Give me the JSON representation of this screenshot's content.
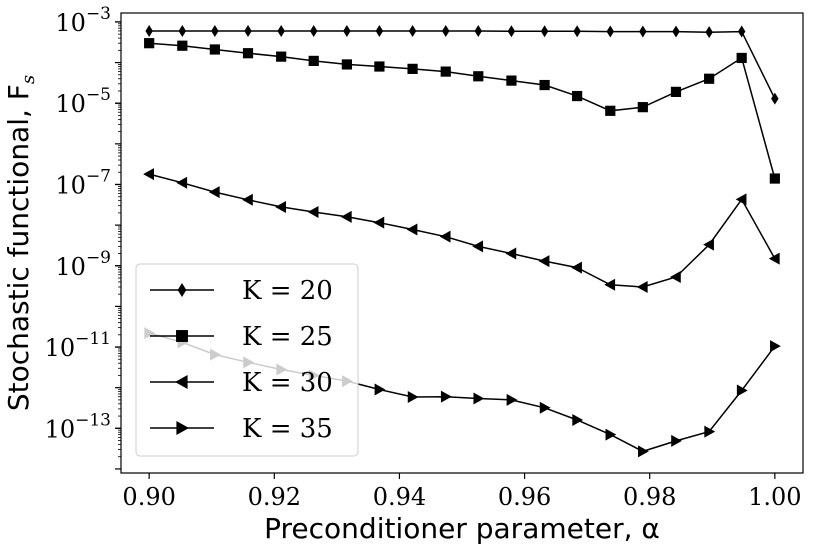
{
  "chart_data": {
    "type": "line",
    "title": "",
    "xlabel": "Preconditioner parameter, α",
    "ylabel": "Stochastic functional, F",
    "ylabel_sub": "s",
    "y_scale": "log",
    "xlim": [
      0.8955,
      1.0045
    ],
    "ylim_exp": [
      -14.1,
      -2.78
    ],
    "x_ticks": [
      0.9,
      0.92,
      0.94,
      0.96,
      0.98,
      1.0
    ],
    "x_tick_labels": [
      "0.90",
      "0.92",
      "0.94",
      "0.96",
      "0.98",
      "1.00"
    ],
    "y_ticks_exp": [
      -13,
      -11,
      -9,
      -7,
      -5,
      -3
    ],
    "y_tick_labels": [
      "10",
      "10",
      "10",
      "10",
      "10",
      "10"
    ],
    "y_tick_exponents": [
      "−13",
      "−11",
      "−9",
      "−7",
      "−5",
      "−3"
    ],
    "grid": false,
    "legend_position": "lower-left",
    "x": [
      0.9,
      0.9053,
      0.9105,
      0.9158,
      0.9211,
      0.9263,
      0.9316,
      0.9368,
      0.9421,
      0.9474,
      0.9526,
      0.9579,
      0.9632,
      0.9684,
      0.9737,
      0.9789,
      0.9842,
      0.9895,
      0.9947,
      1.0
    ],
    "series": [
      {
        "name": "K = 20",
        "marker": "diamond",
        "color": "#000000",
        "values": [
          0.0006,
          0.0006,
          0.0006,
          0.0006,
          0.0006,
          0.0006,
          0.0006,
          0.0006,
          0.0006,
          0.0006,
          0.0006,
          0.00059,
          0.00059,
          0.00059,
          0.00058,
          0.00058,
          0.00058,
          0.00056,
          0.00058,
          1.3e-05
        ]
      },
      {
        "name": "K = 25",
        "marker": "square",
        "color": "#000000",
        "values": [
          0.0003,
          0.00026,
          0.00021,
          0.00017,
          0.00014,
          0.00011,
          9e-05,
          8e-05,
          7e-05,
          6e-05,
          4.6e-05,
          3.6e-05,
          2.8e-05,
          1.5e-05,
          6.5e-06,
          8e-06,
          1.9e-05,
          4e-05,
          0.00013,
          1.4e-07
        ]
      },
      {
        "name": "K = 30",
        "marker": "triangle-left",
        "color": "#000000",
        "values": [
          1.8e-07,
          1.1e-07,
          6.5e-08,
          4.2e-08,
          2.8e-08,
          2.1e-08,
          1.6e-08,
          1.15e-08,
          7.8e-09,
          5.2e-09,
          3e-09,
          2e-09,
          1.3e-09,
          9e-10,
          3.4e-10,
          3e-10,
          5.3e-10,
          3.3e-09,
          4.3e-08,
          1.5e-09
        ]
      },
      {
        "name": "K = 35",
        "marker": "triangle-right",
        "color": "#000000",
        "values": [
          2.2e-11,
          1.3e-11,
          6.5e-12,
          4.2e-12,
          2.8e-12,
          2e-12,
          1.45e-12,
          9e-13,
          5.9e-13,
          6e-13,
          5.4e-13,
          5e-13,
          3.2e-13,
          1.6e-13,
          7e-14,
          2.7e-14,
          4.9e-14,
          8.3e-14,
          8.5e-13,
          1.05e-11
        ]
      }
    ]
  }
}
